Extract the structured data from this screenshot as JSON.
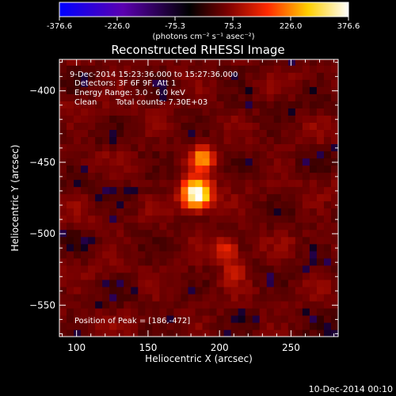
{
  "chart_data": {
    "type": "heatmap",
    "title": "Reconstructed RHESSI Image",
    "xlabel": "Heliocentric X (arcsec)",
    "ylabel": "Heliocentric Y (arcsec)",
    "x_ticks": [
      100,
      150,
      200,
      250
    ],
    "y_ticks": [
      -400,
      -450,
      -500,
      -550
    ],
    "xlim": [
      88,
      283
    ],
    "ylim": [
      -572,
      -378
    ],
    "colorbar": {
      "ticks": [
        "-376.6",
        "-226.0",
        "-75.3",
        "75.3",
        "226.0",
        "376.6"
      ],
      "min": -376.6,
      "max": 376.6,
      "unit_label": "(photons cm⁻² s⁻¹ asec⁻²)",
      "colormap": [
        "#0000ff",
        "#5b00b0",
        "#000000",
        "#7a0000",
        "#ff2a00",
        "#ffcf00",
        "#ffffff"
      ]
    },
    "sources": [
      {
        "x": 184,
        "y": -472,
        "peak": 376.6
      },
      {
        "x": 188,
        "y": -447,
        "peak": 200
      },
      {
        "x": 205,
        "y": -511,
        "peak": 120
      },
      {
        "x": 210,
        "y": -527,
        "peak": 80
      }
    ],
    "annotations": {
      "time_range": "9-Dec-2014 15:23:36.000 to 15:27:36.000",
      "detectors": "Detectors: 3F 6F 9F, Att 1",
      "energy": "Energy Range: 3.0 - 6.0 keV",
      "algorithm": "Clean",
      "counts": "Total counts: 7.30E+03",
      "peak": "Position of Peak = [186,-472]"
    }
  },
  "footer": {
    "date": "10-Dec-2014 00:10"
  }
}
